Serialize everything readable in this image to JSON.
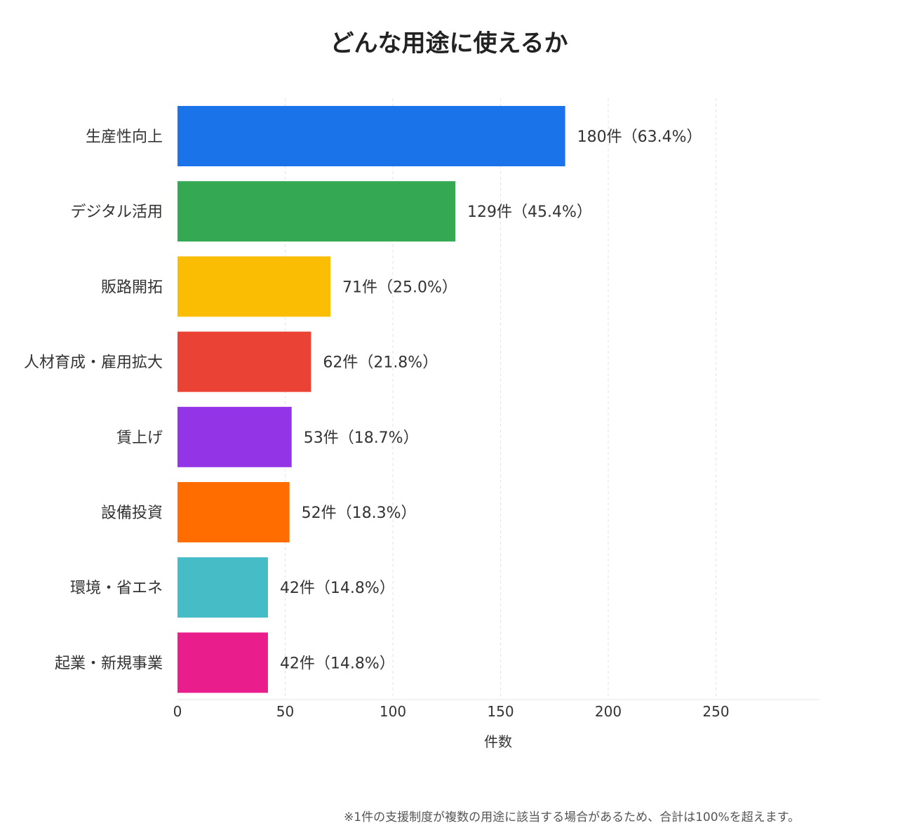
{
  "chart_data": {
    "type": "bar",
    "orientation": "horizontal",
    "title": "どんな用途に使えるか",
    "xlabel": "件数",
    "ylabel": "",
    "xlim": [
      0,
      300
    ],
    "xticks": [
      0,
      50,
      100,
      150,
      200,
      250
    ],
    "grid": "vertical-dashed",
    "categories": [
      "生産性向上",
      "デジタル活用",
      "販路開拓",
      "人材育成・雇用拡大",
      "賃上げ",
      "設備投資",
      "環境・省エネ",
      "起業・新規事業"
    ],
    "values": [
      180,
      129,
      71,
      62,
      53,
      52,
      42,
      42
    ],
    "value_labels": [
      "180件（63.4%）",
      "129件（45.4%）",
      "71件（25.0%）",
      "62件（21.8%）",
      "53件（18.7%）",
      "52件（18.3%）",
      "42件（14.8%）",
      "42件（14.8%）"
    ],
    "colors": [
      "#1a73e8",
      "#34a853",
      "#fbbc04",
      "#ea4335",
      "#9334e6",
      "#ff6d01",
      "#46bdc6",
      "#e91e8c"
    ]
  },
  "footnote": "※1件の支援制度が複数の用途に該当する場合があるため、合計は100%を超えます。"
}
